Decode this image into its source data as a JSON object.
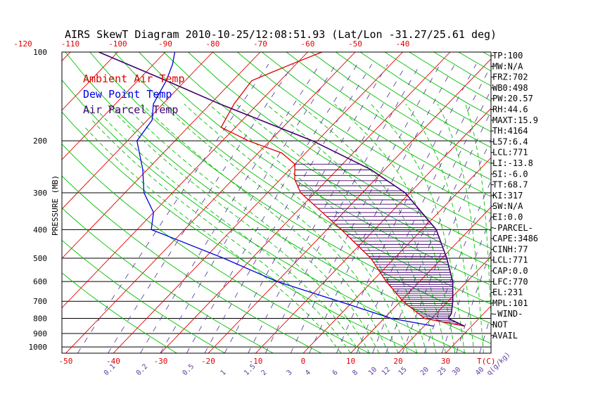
{
  "chart_data": {
    "type": "line",
    "title": "AIRS SkewT Diagram 2010-10-25/12:08:51.93 (Lat/Lon -31.27/25.61 deg)",
    "ylabel": "PRESSURE (MB)",
    "xlabel": "T(C)",
    "mixing_ratio_unit": "q(g/kg)",
    "y_scale": "log",
    "ylim": [
      1050,
      100
    ],
    "xlim_bottom": [
      -52,
      32
    ],
    "pressure_ticks": [
      100,
      200,
      300,
      400,
      500,
      600,
      700,
      800,
      900,
      1000
    ],
    "temp_ticks_bottom": [
      -50,
      -40,
      -30,
      -20,
      -10,
      0,
      10,
      20,
      30
    ],
    "temp_ticks_top": [
      -120,
      -110,
      -100,
      -90,
      -80,
      -70,
      -60,
      -50,
      -40
    ],
    "mixing_ratio_labels": [
      "0.1",
      "0.2",
      "0.5",
      "1",
      "1.5",
      "2",
      "3",
      "4",
      "6",
      "8",
      "10",
      "12",
      "15",
      "20",
      "25",
      "30",
      "40",
      "q(g/kg)"
    ],
    "legend": [
      "Ambient Air Temp",
      "Dew Point Temp",
      "Air Parcel Temp"
    ],
    "legend_position": "top-left",
    "colors": {
      "ambient": "#e00000",
      "dewpoint": "#0000e0",
      "parcel": "#400070",
      "isotherm": "#e00000",
      "dry_adiabat": "#00c000",
      "mixing_ratio": "#6040a0",
      "moist_adiabat": "#00c000",
      "cape_hatch": "#400070"
    },
    "series": [
      {
        "name": "Ambient Air Temp",
        "points": [
          [
            850,
            28.5
          ],
          [
            800,
            18.5
          ],
          [
            700,
            10.5
          ],
          [
            600,
            3
          ],
          [
            500,
            -5
          ],
          [
            400,
            -17
          ],
          [
            300,
            -33
          ],
          [
            270,
            -37
          ],
          [
            240,
            -40
          ],
          [
            220,
            -45
          ],
          [
            200,
            -54.5
          ],
          [
            180,
            -63
          ],
          [
            150,
            -65
          ],
          [
            125,
            -66
          ],
          [
            110,
            -61
          ],
          [
            100,
            -57
          ]
        ]
      },
      {
        "name": "Dew Point Temp",
        "points": [
          [
            850,
            22
          ],
          [
            800,
            11.5
          ],
          [
            700,
            -3
          ],
          [
            600,
            -20
          ],
          [
            500,
            -36
          ],
          [
            400,
            -57
          ],
          [
            350,
            -60
          ],
          [
            300,
            -66
          ],
          [
            250,
            -71
          ],
          [
            200,
            -78
          ],
          [
            170,
            -79
          ],
          [
            150,
            -82
          ],
          [
            125,
            -84
          ],
          [
            110,
            -86
          ],
          [
            100,
            -88
          ]
        ]
      },
      {
        "name": "Air Parcel Temp",
        "points": [
          [
            850,
            28.5
          ],
          [
            800,
            23.5
          ],
          [
            771,
            23.2
          ],
          [
            700,
            21
          ],
          [
            600,
            17
          ],
          [
            500,
            11
          ],
          [
            400,
            3
          ],
          [
            300,
            -11
          ],
          [
            250,
            -23
          ],
          [
            200,
            -41
          ],
          [
            150,
            -68
          ],
          [
            125,
            -84
          ],
          [
            100,
            -104
          ]
        ]
      }
    ]
  },
  "indices": [
    "TP:100",
    "MW:N/A",
    "FRZ:702",
    "WB0:498",
    "PW:20.57",
    "RH:44.6",
    "MAXT:15.9",
    "TH:4164",
    "L57:6.4",
    "LCL:771",
    "LI:-13.8",
    "SI:-6.0",
    "TT:68.7",
    "KI:317",
    "SW:N/A",
    "EI:0.0",
    "-PARCEL-",
    "CAPE:3486",
    "CINH:77",
    "LCL:771",
    "CAP:0.0",
    "LFC:770",
    "EL:231",
    "MPL:101",
    "-WIND-",
    "NOT",
    "AVAIL"
  ]
}
